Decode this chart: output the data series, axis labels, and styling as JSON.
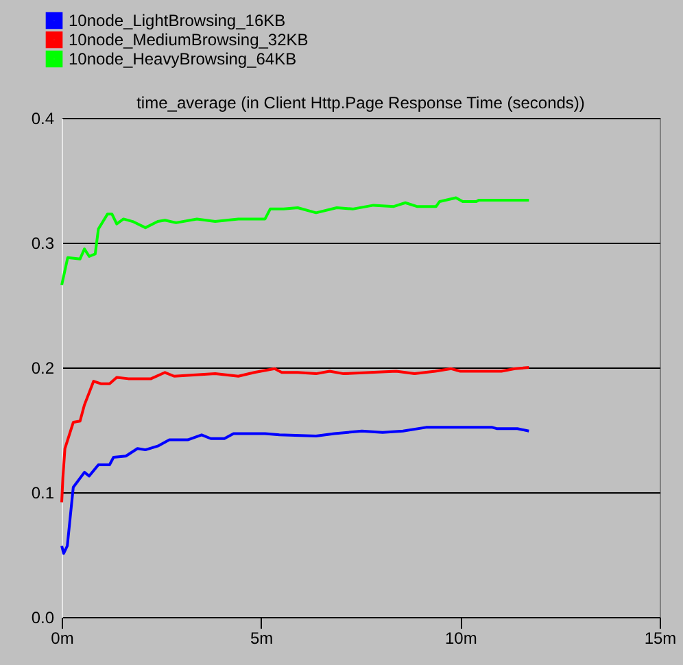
{
  "chart_data": {
    "type": "line",
    "title": "time_average (in Client Http.Page Response Time (seconds))",
    "xlim": [
      0,
      15
    ],
    "xticks": [
      {
        "value": 0,
        "label": "0m"
      },
      {
        "value": 5,
        "label": "5m"
      },
      {
        "value": 10,
        "label": "10m"
      },
      {
        "value": 15,
        "label": "15m"
      }
    ],
    "ylim": [
      0,
      0.4
    ],
    "yticks": [
      {
        "value": 0,
        "label": "0.0"
      },
      0.1,
      0.2,
      0.3,
      0.4
    ],
    "grid": "y",
    "legend": "top left",
    "line_style": "solid",
    "series": [
      {
        "name": "10node_LightBrowsing_16KB",
        "color": "#0000ff",
        "x": [
          0,
          0.05,
          0.14,
          0.29,
          0.57,
          0.69,
          0.92,
          1.2,
          1.3,
          1.61,
          1.9,
          2.1,
          2.41,
          2.7,
          3.16,
          3.51,
          3.74,
          4.08,
          4.31,
          5.1,
          5.46,
          6.38,
          6.84,
          7.53,
          8.05,
          8.56,
          9.14,
          10.06,
          10.8,
          10.91,
          11.43,
          11.72
        ],
        "values": [
          0.057,
          0.051,
          0.057,
          0.104,
          0.116,
          0.113,
          0.122,
          0.122,
          0.128,
          0.129,
          0.135,
          0.134,
          0.137,
          0.142,
          0.142,
          0.146,
          0.143,
          0.143,
          0.147,
          0.147,
          0.146,
          0.145,
          0.147,
          0.149,
          0.148,
          0.149,
          0.152,
          0.152,
          0.152,
          0.151,
          0.151,
          0.149
        ]
      },
      {
        "name": "10node_MediumBrowsing_32KB",
        "color": "#ff0000",
        "x": [
          0,
          0.03,
          0.08,
          0.29,
          0.46,
          0.57,
          0.8,
          0.98,
          1.2,
          1.38,
          1.67,
          2.24,
          2.59,
          2.82,
          3.85,
          4.43,
          4.83,
          5.34,
          5.52,
          5.92,
          6.38,
          6.72,
          7.07,
          8.39,
          8.85,
          9.37,
          9.77,
          10.0,
          11.03,
          11.37,
          11.72
        ],
        "values": [
          0.092,
          0.112,
          0.135,
          0.156,
          0.157,
          0.17,
          0.189,
          0.187,
          0.187,
          0.192,
          0.191,
          0.191,
          0.196,
          0.193,
          0.195,
          0.193,
          0.196,
          0.199,
          0.196,
          0.196,
          0.195,
          0.197,
          0.195,
          0.197,
          0.195,
          0.197,
          0.199,
          0.197,
          0.197,
          0.199,
          0.2
        ]
      },
      {
        "name": "10node_HeavyBrowsing_64KB",
        "color": "#00ff00",
        "x": [
          0,
          0.15,
          0.46,
          0.57,
          0.69,
          0.84,
          0.92,
          1.15,
          1.26,
          1.38,
          1.55,
          1.78,
          2.1,
          2.41,
          2.59,
          2.87,
          3.39,
          3.85,
          4.43,
          5.1,
          5.23,
          5.57,
          5.92,
          6.38,
          6.9,
          7.3,
          7.82,
          8.33,
          8.62,
          8.91,
          9.39,
          9.48,
          9.89,
          10.06,
          10.4,
          10.46,
          11.72
        ],
        "values": [
          0.266,
          0.288,
          0.287,
          0.295,
          0.289,
          0.291,
          0.311,
          0.323,
          0.323,
          0.315,
          0.319,
          0.317,
          0.312,
          0.317,
          0.318,
          0.316,
          0.319,
          0.317,
          0.319,
          0.319,
          0.327,
          0.327,
          0.328,
          0.324,
          0.328,
          0.327,
          0.33,
          0.329,
          0.332,
          0.329,
          0.329,
          0.333,
          0.336,
          0.333,
          0.333,
          0.334,
          0.334
        ]
      }
    ]
  }
}
